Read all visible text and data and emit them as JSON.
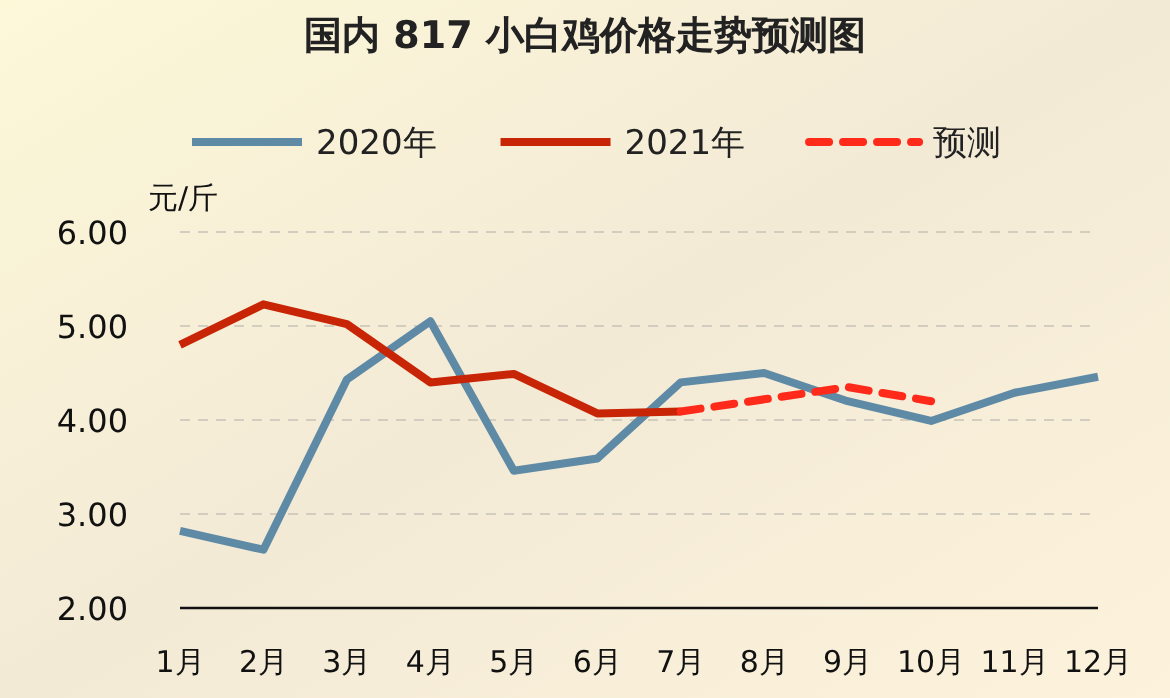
{
  "chart_data": {
    "type": "line",
    "title": "国内 817 小白鸡价格走势预测图",
    "ylabel": "元/斤",
    "categories": [
      "1月",
      "2月",
      "3月",
      "4月",
      "5月",
      "6月",
      "7月",
      "8月",
      "9月",
      "10月",
      "11月",
      "12月"
    ],
    "series": [
      {
        "name": "2020年",
        "color": "#5f8aa6",
        "values": [
          2.82,
          2.62,
          4.43,
          5.05,
          3.46,
          3.59,
          4.4,
          4.5,
          4.2,
          3.99,
          4.29,
          4.46
        ]
      },
      {
        "name": "2021年",
        "color": "#c82506",
        "values": [
          4.8,
          5.23,
          5.02,
          4.4,
          4.49,
          4.07,
          4.09,
          null,
          null,
          null,
          null,
          null
        ]
      },
      {
        "name": "预测",
        "color": "#ff2a1a",
        "line_style": "dashed",
        "values": [
          null,
          null,
          null,
          null,
          null,
          null,
          4.09,
          4.22,
          4.35,
          4.2,
          null,
          null
        ]
      }
    ],
    "ylim": [
      2,
      6
    ],
    "yticks": [
      {
        "value": 2,
        "label": "2.00"
      },
      {
        "value": 3,
        "label": "3.00"
      },
      {
        "value": 4,
        "label": "4.00"
      },
      {
        "value": 5,
        "label": "5.00"
      },
      {
        "value": 6,
        "label": "6.00"
      }
    ],
    "grid": "y",
    "legend": "top",
    "marker": "none",
    "line_style": "solid"
  }
}
